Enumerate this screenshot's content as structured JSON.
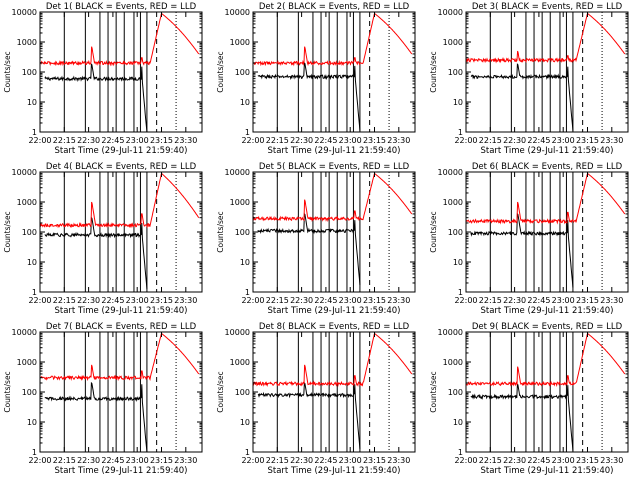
{
  "chart_data": [
    {
      "type": "line",
      "title": "Det 1( BLACK = Events, RED = LLD",
      "ylabel": "Counts/sec",
      "xlabel": "Start Time (29-Jul-11 21:59:40)",
      "x_ticks": [
        "22:00",
        "22:15",
        "22:30",
        "22:45",
        "23:00",
        "23:15",
        "23:30"
      ],
      "y_ticks": [
        "1",
        "10",
        "100",
        "1000",
        "10000"
      ],
      "ylim": [
        1,
        10000
      ],
      "yscale": "log",
      "series": [
        {
          "color": "#000000",
          "start": "22:03",
          "end": "23:06",
          "level": 60,
          "spikes": [
            {
              "t": "22:32",
              "v": 180
            },
            {
              "t": "23:03",
              "v": 150
            }
          ]
        },
        {
          "color": "#ff0000",
          "start": "22:00",
          "end": "23:38",
          "level": 200,
          "spikes": [
            {
              "t": "22:32",
              "v": 700
            },
            {
              "t": "23:03",
              "v": 300
            }
          ],
          "flare": {
            "start": "23:08",
            "peak": "23:15",
            "peak_value": 9000,
            "end_value": 400
          }
        }
      ]
    },
    {
      "type": "line",
      "title": "Det 2( BLACK = Events, RED = LLD",
      "ylabel": "Counts/sec",
      "xlabel": "Start Time (29-Jul-11 21:59:40)",
      "x_ticks": [
        "22:00",
        "22:15",
        "22:30",
        "22:45",
        "23:00",
        "23:15",
        "23:30"
      ],
      "y_ticks": [
        "1",
        "10",
        "100",
        "1000",
        "10000"
      ],
      "ylim": [
        1,
        10000
      ],
      "yscale": "log",
      "series": [
        {
          "color": "#000000",
          "start": "22:03",
          "end": "23:06",
          "level": 70,
          "spikes": [
            {
              "t": "22:32",
              "v": 200
            },
            {
              "t": "23:03",
              "v": 160
            }
          ]
        },
        {
          "color": "#ff0000",
          "start": "22:00",
          "end": "23:38",
          "level": 200,
          "spikes": [
            {
              "t": "22:32",
              "v": 700
            },
            {
              "t": "23:03",
              "v": 300
            }
          ],
          "flare": {
            "start": "23:08",
            "peak": "23:15",
            "peak_value": 9000,
            "end_value": 400
          }
        }
      ]
    },
    {
      "type": "line",
      "title": "Det 3( BLACK = Events, RED = LLD",
      "ylabel": "Counts/sec",
      "xlabel": "Start Time (29-Jul-11 21:59:40)",
      "x_ticks": [
        "22:00",
        "22:15",
        "22:30",
        "22:45",
        "23:00",
        "23:15",
        "23:30"
      ],
      "y_ticks": [
        "1",
        "10",
        "100",
        "1000",
        "10000"
      ],
      "ylim": [
        1,
        10000
      ],
      "yscale": "log",
      "series": [
        {
          "color": "#000000",
          "start": "22:03",
          "end": "23:06",
          "level": 70,
          "spikes": [
            {
              "t": "22:32",
              "v": 180
            },
            {
              "t": "23:03",
              "v": 150
            }
          ]
        },
        {
          "color": "#ff0000",
          "start": "22:00",
          "end": "23:38",
          "level": 250,
          "spikes": [
            {
              "t": "22:32",
              "v": 500
            },
            {
              "t": "23:03",
              "v": 350
            }
          ],
          "flare": {
            "start": "23:08",
            "peak": "23:15",
            "peak_value": 9000,
            "end_value": 400
          }
        }
      ]
    },
    {
      "type": "line",
      "title": "Det 4( BLACK = Events, RED = LLD",
      "ylabel": "Counts/sec",
      "xlabel": "Start Time (29-Jul-11 21:59:40)",
      "x_ticks": [
        "22:00",
        "22:15",
        "22:30",
        "22:45",
        "23:00",
        "23:15",
        "23:30"
      ],
      "y_ticks": [
        "1",
        "10",
        "100",
        "1000",
        "10000"
      ],
      "ylim": [
        1,
        10000
      ],
      "yscale": "log",
      "series": [
        {
          "color": "#000000",
          "start": "22:03",
          "end": "23:06",
          "level": 80,
          "spikes": [
            {
              "t": "22:32",
              "v": 300
            },
            {
              "t": "23:03",
              "v": 200
            }
          ]
        },
        {
          "color": "#ff0000",
          "start": "22:00",
          "end": "23:38",
          "level": 170,
          "spikes": [
            {
              "t": "22:32",
              "v": 1000
            },
            {
              "t": "23:03",
              "v": 400
            }
          ],
          "flare": {
            "start": "23:08",
            "peak": "23:15",
            "peak_value": 9000,
            "end_value": 300
          }
        }
      ]
    },
    {
      "type": "line",
      "title": "Det 5( BLACK = Events, RED = LLD",
      "ylabel": "Counts/sec",
      "xlabel": "Start Time (29-Jul-11 21:59:40)",
      "x_ticks": [
        "22:00",
        "22:15",
        "22:30",
        "22:45",
        "23:00",
        "23:15",
        "23:30"
      ],
      "y_ticks": [
        "1",
        "10",
        "100",
        "1000",
        "10000"
      ],
      "ylim": [
        1,
        10000
      ],
      "yscale": "log",
      "series": [
        {
          "color": "#000000",
          "start": "22:03",
          "end": "23:06",
          "level": 110,
          "spikes": [
            {
              "t": "22:32",
              "v": 400
            },
            {
              "t": "23:03",
              "v": 250
            }
          ]
        },
        {
          "color": "#ff0000",
          "start": "22:00",
          "end": "23:38",
          "level": 280,
          "spikes": [
            {
              "t": "22:32",
              "v": 1200
            },
            {
              "t": "23:03",
              "v": 500
            }
          ],
          "flare": {
            "start": "23:08",
            "peak": "23:15",
            "peak_value": 9000,
            "end_value": 400
          }
        }
      ]
    },
    {
      "type": "line",
      "title": "Det 6( BLACK = Events, RED = LLD",
      "ylabel": "Counts/sec",
      "xlabel": "Start Time (29-Jul-11 21:59:40)",
      "x_ticks": [
        "22:00",
        "22:15",
        "22:30",
        "22:45",
        "23:00",
        "23:15",
        "23:30"
      ],
      "y_ticks": [
        "1",
        "10",
        "100",
        "1000",
        "10000"
      ],
      "ylim": [
        1,
        10000
      ],
      "yscale": "log",
      "series": [
        {
          "color": "#000000",
          "start": "22:03",
          "end": "23:06",
          "level": 90,
          "spikes": [
            {
              "t": "22:32",
              "v": 400
            },
            {
              "t": "23:03",
              "v": 250
            }
          ]
        },
        {
          "color": "#ff0000",
          "start": "22:00",
          "end": "23:38",
          "level": 230,
          "spikes": [
            {
              "t": "22:32",
              "v": 1000
            },
            {
              "t": "23:03",
              "v": 450
            }
          ],
          "flare": {
            "start": "23:08",
            "peak": "23:15",
            "peak_value": 9000,
            "end_value": 400
          }
        }
      ]
    },
    {
      "type": "line",
      "title": "Det 7( BLACK = Events, RED = LLD",
      "ylabel": "Counts/sec",
      "xlabel": "Start Time (29-Jul-11 21:59:40)",
      "x_ticks": [
        "22:00",
        "22:15",
        "22:30",
        "22:45",
        "23:00",
        "23:15",
        "23:30"
      ],
      "y_ticks": [
        "1",
        "10",
        "100",
        "1000",
        "10000"
      ],
      "ylim": [
        1,
        10000
      ],
      "yscale": "log",
      "series": [
        {
          "color": "#000000",
          "start": "22:03",
          "end": "23:06",
          "level": 60,
          "spikes": [
            {
              "t": "22:32",
              "v": 200
            },
            {
              "t": "23:03",
              "v": 180
            }
          ]
        },
        {
          "color": "#ff0000",
          "start": "22:00",
          "end": "23:38",
          "level": 300,
          "spikes": [
            {
              "t": "22:32",
              "v": 800
            },
            {
              "t": "23:03",
              "v": 500
            }
          ],
          "flare": {
            "start": "23:08",
            "peak": "23:15",
            "peak_value": 9000,
            "end_value": 400
          }
        }
      ]
    },
    {
      "type": "line",
      "title": "Det 8( BLACK = Events, RED = LLD",
      "ylabel": "Counts/sec",
      "xlabel": "Start Time (29-Jul-11 21:59:40)",
      "x_ticks": [
        "22:00",
        "22:15",
        "22:30",
        "22:45",
        "23:00",
        "23:15",
        "23:30"
      ],
      "y_ticks": [
        "1",
        "10",
        "100",
        "1000",
        "10000"
      ],
      "ylim": [
        1,
        10000
      ],
      "yscale": "log",
      "series": [
        {
          "color": "#000000",
          "start": "22:03",
          "end": "23:06",
          "level": 80,
          "spikes": [
            {
              "t": "22:32",
              "v": 200
            },
            {
              "t": "23:03",
              "v": 180
            }
          ]
        },
        {
          "color": "#ff0000",
          "start": "22:00",
          "end": "23:38",
          "level": 190,
          "spikes": [
            {
              "t": "22:32",
              "v": 800
            },
            {
              "t": "23:03",
              "v": 350
            }
          ],
          "flare": {
            "start": "23:08",
            "peak": "23:15",
            "peak_value": 9000,
            "end_value": 400
          }
        }
      ]
    },
    {
      "type": "line",
      "title": "Det 9( BLACK = Events, RED = LLD",
      "ylabel": "Counts/sec",
      "xlabel": "Start Time (29-Jul-11 21:59:40)",
      "x_ticks": [
        "22:00",
        "22:15",
        "22:30",
        "22:45",
        "23:00",
        "23:15",
        "23:30"
      ],
      "y_ticks": [
        "1",
        "10",
        "100",
        "1000",
        "10000"
      ],
      "ylim": [
        1,
        10000
      ],
      "yscale": "log",
      "series": [
        {
          "color": "#000000",
          "start": "22:03",
          "end": "23:06",
          "level": 70,
          "spikes": [
            {
              "t": "22:32",
              "v": 180
            },
            {
              "t": "23:03",
              "v": 170
            }
          ]
        },
        {
          "color": "#ff0000",
          "start": "22:00",
          "end": "23:38",
          "level": 190,
          "spikes": [
            {
              "t": "22:32",
              "v": 700
            },
            {
              "t": "23:03",
              "v": 350
            }
          ],
          "flare": {
            "start": "23:08",
            "peak": "23:15",
            "peak_value": 9000,
            "end_value": 400
          }
        }
      ]
    }
  ],
  "vertical_markers": {
    "solid": [
      "22:15",
      "22:28",
      "22:37",
      "22:42",
      "22:47",
      "22:52",
      "22:58",
      "23:02",
      "23:06"
    ],
    "dashed": [
      "23:12"
    ],
    "dotted": [
      "23:24"
    ]
  }
}
